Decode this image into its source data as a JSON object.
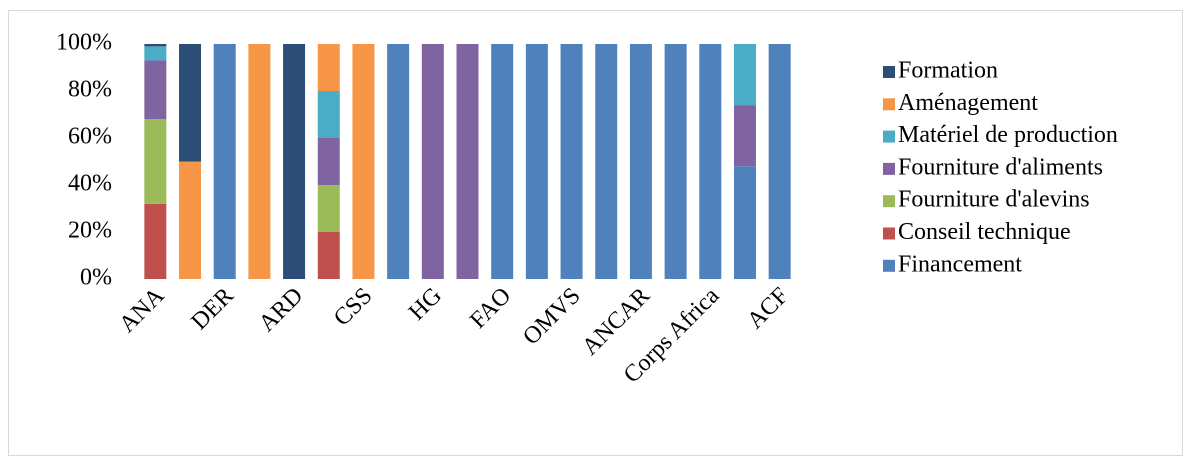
{
  "chart_data": {
    "type": "stacked_bar",
    "categories": [
      "ANA",
      null,
      "DER",
      null,
      "ARD",
      null,
      "CSS",
      null,
      "HG",
      null,
      "FAO",
      null,
      "OMVS",
      null,
      "ANCAR",
      null,
      "Corps Africa",
      null,
      "ACF"
    ],
    "series": [
      {
        "name": "Financement",
        "color": "#4f81bd",
        "values": [
          0,
          0,
          100,
          0,
          0,
          0,
          0,
          100,
          0,
          0,
          100,
          100,
          100,
          100,
          100,
          100,
          100,
          48,
          100
        ]
      },
      {
        "name": "Conseil technique",
        "color": "#c0504d",
        "values": [
          32,
          0,
          0,
          0,
          0,
          20,
          0,
          0,
          0,
          0,
          0,
          0,
          0,
          0,
          0,
          0,
          0,
          0,
          0
        ]
      },
      {
        "name": "Fourniture d'alevins",
        "color": "#9bbb59",
        "values": [
          36,
          0,
          0,
          0,
          0,
          20,
          0,
          0,
          0,
          0,
          0,
          0,
          0,
          0,
          0,
          0,
          0,
          0,
          0
        ]
      },
      {
        "name": "Fourniture d'aliments",
        "color": "#8064a2",
        "values": [
          25,
          0,
          0,
          0,
          0,
          20,
          0,
          0,
          100,
          100,
          0,
          0,
          0,
          0,
          0,
          0,
          0,
          26,
          0
        ]
      },
      {
        "name": "Matériel de production",
        "color": "#4bacc6",
        "values": [
          6,
          0,
          0,
          0,
          0,
          20,
          0,
          0,
          0,
          0,
          0,
          0,
          0,
          0,
          0,
          0,
          0,
          26,
          0
        ]
      },
      {
        "name": "Aménagement",
        "color": "#f79646",
        "values": [
          0,
          50,
          0,
          100,
          0,
          20,
          100,
          0,
          0,
          0,
          0,
          0,
          0,
          0,
          0,
          0,
          0,
          0,
          0
        ]
      },
      {
        "name": "Formation",
        "color": "#2c4d75",
        "values": [
          1,
          50,
          0,
          0,
          100,
          0,
          0,
          0,
          0,
          0,
          0,
          0,
          0,
          0,
          0,
          0,
          0,
          0,
          0
        ]
      }
    ],
    "ylim": [
      0,
      100
    ],
    "yticks": [
      {
        "value": 0,
        "label": "0%"
      },
      {
        "value": 20,
        "label": "20%"
      },
      {
        "value": 40,
        "label": "40%"
      },
      {
        "value": 60,
        "label": "60%"
      },
      {
        "value": 80,
        "label": "80%"
      },
      {
        "value": 100,
        "label": "100%"
      }
    ],
    "legend": "right"
  }
}
